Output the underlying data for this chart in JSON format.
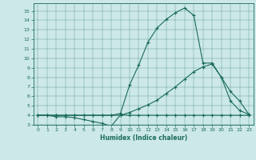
{
  "xlabel": "Humidex (Indice chaleur)",
  "bg_color": "#cce8e8",
  "line_color": "#1a6b5a",
  "xlim": [
    -0.5,
    23.5
  ],
  "ylim": [
    3,
    15.8
  ],
  "yticks": [
    3,
    4,
    5,
    6,
    7,
    8,
    9,
    10,
    11,
    12,
    13,
    14,
    15
  ],
  "xticks": [
    0,
    1,
    2,
    3,
    4,
    5,
    6,
    7,
    8,
    9,
    10,
    11,
    12,
    13,
    14,
    15,
    16,
    17,
    18,
    19,
    20,
    21,
    22,
    23
  ],
  "line1_x": [
    0,
    1,
    2,
    3,
    4,
    5,
    6,
    7,
    8,
    9,
    10,
    11,
    12,
    13,
    14,
    15,
    16,
    17,
    18,
    19,
    20,
    21,
    22,
    23
  ],
  "line1_y": [
    4.0,
    4.0,
    3.85,
    3.85,
    3.75,
    3.55,
    3.35,
    3.15,
    2.85,
    4.05,
    4.0,
    4.0,
    4.0,
    4.0,
    4.0,
    4.0,
    4.0,
    4.0,
    4.0,
    4.0,
    4.0,
    4.0,
    4.0,
    4.0
  ],
  "line2_x": [
    0,
    1,
    2,
    3,
    4,
    5,
    6,
    7,
    8,
    9,
    10,
    11,
    12,
    13,
    14,
    15,
    16,
    17,
    18,
    19,
    20,
    21,
    22,
    23
  ],
  "line2_y": [
    4.0,
    4.0,
    4.0,
    4.0,
    4.0,
    4.0,
    4.0,
    4.0,
    4.0,
    4.0,
    4.3,
    4.7,
    5.1,
    5.6,
    6.3,
    7.0,
    7.8,
    8.6,
    9.1,
    9.4,
    8.0,
    5.5,
    4.5,
    4.1
  ],
  "line3_x": [
    0,
    1,
    2,
    3,
    4,
    5,
    6,
    7,
    8,
    9,
    10,
    11,
    12,
    13,
    14,
    15,
    16,
    17,
    18,
    19,
    20,
    21,
    22,
    23
  ],
  "line3_y": [
    4.0,
    4.0,
    4.0,
    4.0,
    4.0,
    4.0,
    4.0,
    4.0,
    4.0,
    4.2,
    7.2,
    9.3,
    11.7,
    13.2,
    14.1,
    14.8,
    15.3,
    14.5,
    9.5,
    9.5,
    8.0,
    6.5,
    5.5,
    4.1
  ]
}
